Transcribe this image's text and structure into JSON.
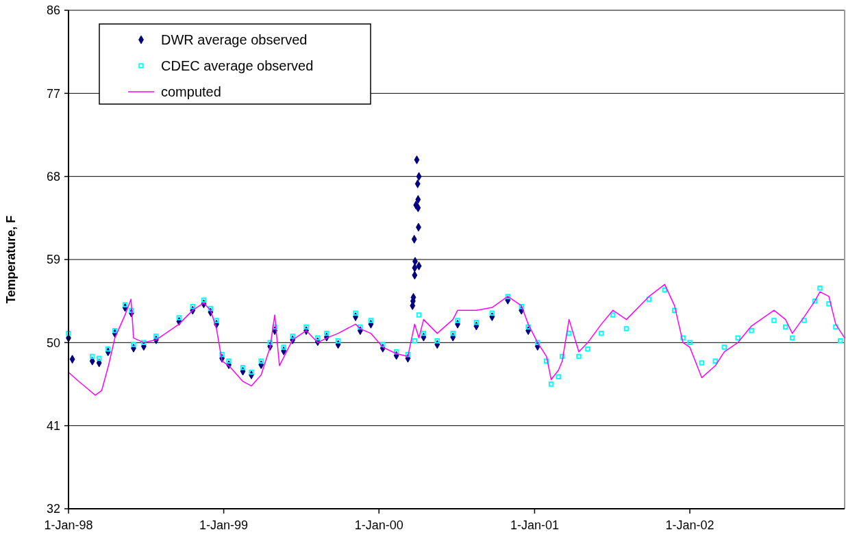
{
  "chart_data": {
    "type": "line",
    "ylabel": "Temperature, F",
    "xlim": [
      "1998-01-01",
      "2002-12-31"
    ],
    "xticks": [
      {
        "value": "1998-01-01",
        "label": "1-Jan-98"
      },
      {
        "value": "1999-01-01",
        "label": "1-Jan-99"
      },
      {
        "value": "2000-01-01",
        "label": "1-Jan-00"
      },
      {
        "value": "2001-01-01",
        "label": "1-Jan-01"
      },
      {
        "value": "2002-01-01",
        "label": "1-Jan-02"
      }
    ],
    "ylim": [
      32,
      86
    ],
    "yticks": [
      32,
      41,
      50,
      59,
      68,
      77,
      86
    ],
    "grid": "y",
    "legend": "top left",
    "series": [
      {
        "name": "DWR average observed",
        "type": "scatter",
        "marker": "diamond",
        "color": "#000080",
        "x": [
          "1998-01-01",
          "1998-01-10",
          "1998-02-26",
          "1998-03-14",
          "1998-04-04",
          "1998-04-20",
          "1998-05-14",
          "1998-05-29",
          "1998-06-03",
          "1998-06-27",
          "1998-07-26",
          "1998-09-18",
          "1998-10-20",
          "1998-11-15",
          "1998-12-01",
          "1998-12-15",
          "1998-12-28",
          "1999-01-13",
          "1999-02-15",
          "1999-03-07",
          "1999-03-30",
          "1999-04-20",
          "1999-05-01",
          "1999-05-22",
          "1999-06-12",
          "1999-07-14",
          "1999-08-10",
          "1999-08-31",
          "1999-09-27",
          "1999-11-07",
          "1999-11-18",
          "1999-12-13",
          "2000-01-10",
          "2000-02-11",
          "2000-03-09",
          "2000-03-20",
          "2000-03-21",
          "2000-03-22",
          "2000-03-25",
          "2000-03-25",
          "2000-03-26",
          "2000-03-24",
          "2000-03-30",
          "2000-03-28",
          "2000-04-01",
          "2000-04-02",
          "2000-04-02",
          "2000-04-03",
          "2000-04-04",
          "2000-04-04",
          "2000-04-15",
          "2000-05-17",
          "2000-06-23",
          "2000-07-04",
          "2000-08-17",
          "2000-09-23",
          "2000-10-30",
          "2000-12-01",
          "2000-12-17",
          "2001-01-08"
        ],
        "values": [
          50.5,
          48.2,
          48.0,
          47.8,
          49.0,
          51.0,
          53.8,
          53.2,
          49.4,
          49.6,
          50.3,
          52.3,
          53.5,
          54.2,
          53.3,
          52.0,
          48.3,
          47.6,
          46.9,
          46.5,
          47.6,
          49.6,
          51.3,
          49.1,
          50.3,
          51.3,
          50.1,
          50.6,
          49.8,
          52.8,
          51.3,
          52.0,
          49.4,
          48.6,
          48.3,
          54.0,
          54.5,
          54.9,
          57.3,
          58.1,
          58.8,
          61.2,
          69.8,
          64.9,
          67.2,
          65.5,
          64.6,
          62.5,
          68.0,
          58.3,
          50.6,
          49.8,
          50.6,
          52.0,
          51.8,
          52.8,
          54.6,
          53.5,
          51.3,
          49.6
        ]
      },
      {
        "name": "CDEC average observed",
        "type": "scatter",
        "marker": "square",
        "color": "#00ffff",
        "x": [
          "1998-01-01",
          "1998-02-26",
          "1998-03-14",
          "1998-04-04",
          "1998-04-20",
          "1998-05-14",
          "1998-05-29",
          "1998-06-03",
          "1998-06-27",
          "1998-07-26",
          "1998-09-18",
          "1998-10-20",
          "1998-11-15",
          "1998-12-01",
          "1998-12-15",
          "1998-12-28",
          "1999-01-13",
          "1999-02-15",
          "1999-03-07",
          "1999-03-30",
          "1999-04-20",
          "1999-05-01",
          "1999-05-22",
          "1999-06-12",
          "1999-07-14",
          "1999-08-10",
          "1999-08-31",
          "1999-09-27",
          "1999-11-07",
          "1999-11-18",
          "1999-12-13",
          "2000-01-10",
          "2000-02-11",
          "2000-03-09",
          "2000-03-25",
          "2000-04-04",
          "2000-04-15",
          "2000-05-17",
          "2000-06-23",
          "2000-07-04",
          "2000-08-17",
          "2000-09-23",
          "2000-10-30",
          "2000-12-01",
          "2000-12-17",
          "2001-01-08",
          "2001-01-29",
          "2001-02-09",
          "2001-02-26",
          "2001-03-07",
          "2001-03-23",
          "2001-04-15",
          "2001-05-06",
          "2001-06-07",
          "2001-07-04",
          "2001-08-05",
          "2001-09-27",
          "2001-11-03",
          "2001-11-26",
          "2001-12-16",
          "2002-01-01",
          "2002-01-29",
          "2002-03-02",
          "2002-03-23",
          "2002-04-24",
          "2002-05-26",
          "2002-07-18",
          "2002-08-14",
          "2002-08-30",
          "2002-09-27",
          "2002-10-22",
          "2002-11-03",
          "2002-11-24",
          "2002-12-10",
          "2002-12-21"
        ],
        "values": [
          51.0,
          48.5,
          48.3,
          49.3,
          51.3,
          54.1,
          53.5,
          49.8,
          50.0,
          50.7,
          52.7,
          53.9,
          54.6,
          53.7,
          52.4,
          48.7,
          48.0,
          47.3,
          46.8,
          48.0,
          50.0,
          51.7,
          49.5,
          50.7,
          51.7,
          50.5,
          51.0,
          50.2,
          53.2,
          51.7,
          52.4,
          49.8,
          49.0,
          48.7,
          50.2,
          53.0,
          51.0,
          50.2,
          51.0,
          52.4,
          52.2,
          53.2,
          55.0,
          53.9,
          51.7,
          50.0,
          48.0,
          45.5,
          46.3,
          48.5,
          51.0,
          48.5,
          49.3,
          51.0,
          53.0,
          51.5,
          54.7,
          55.7,
          53.5,
          50.5,
          50.0,
          47.8,
          48.0,
          49.5,
          50.5,
          51.3,
          52.4,
          51.7,
          50.5,
          52.4,
          54.5,
          55.9,
          54.2,
          51.7,
          50.2
        ]
      },
      {
        "name": "computed",
        "color": "#ff00ff",
        "x": [
          "1998-01-01",
          "1998-01-20",
          "1998-02-15",
          "1998-03-05",
          "1998-03-20",
          "1998-04-05",
          "1998-04-20",
          "1998-05-14",
          "1998-05-28",
          "1998-06-03",
          "1998-06-27",
          "1998-07-26",
          "1998-09-18",
          "1998-10-20",
          "1998-11-15",
          "1998-12-01",
          "1998-12-15",
          "1998-12-28",
          "1999-01-13",
          "1999-02-15",
          "1999-03-07",
          "1999-03-30",
          "1999-04-20",
          "1999-05-01",
          "1999-05-12",
          "1999-06-12",
          "1999-07-14",
          "1999-08-10",
          "1999-08-31",
          "1999-09-27",
          "1999-11-07",
          "1999-11-18",
          "1999-12-13",
          "2000-01-10",
          "2000-02-11",
          "2000-03-09",
          "2000-03-25",
          "2000-04-04",
          "2000-04-15",
          "2000-05-17",
          "2000-06-23",
          "2000-07-04",
          "2000-08-17",
          "2000-09-23",
          "2000-10-30",
          "2000-12-01",
          "2000-12-17",
          "2001-01-08",
          "2001-01-29",
          "2001-02-09",
          "2001-02-26",
          "2001-03-07",
          "2001-03-23",
          "2001-04-15",
          "2001-05-06",
          "2001-06-07",
          "2001-07-04",
          "2001-08-05",
          "2001-09-27",
          "2001-11-03",
          "2001-11-26",
          "2001-12-16",
          "2002-01-01",
          "2002-01-29",
          "2002-03-02",
          "2002-03-23",
          "2002-04-24",
          "2002-05-26",
          "2002-07-18",
          "2002-08-14",
          "2002-08-30",
          "2002-09-27",
          "2002-10-22",
          "2002-11-03",
          "2002-11-24",
          "2002-12-10",
          "2002-12-31"
        ],
        "values": [
          46.8,
          46.0,
          45.0,
          44.3,
          44.8,
          47.5,
          50.5,
          53.0,
          54.7,
          50.5,
          50.0,
          50.3,
          52.0,
          53.5,
          54.3,
          53.5,
          51.5,
          48.0,
          47.5,
          45.8,
          45.3,
          46.5,
          49.5,
          53.0,
          47.5,
          50.3,
          51.3,
          50.0,
          50.5,
          51.0,
          52.0,
          51.5,
          51.0,
          49.5,
          48.8,
          48.5,
          52.0,
          50.5,
          52.5,
          51.0,
          52.5,
          53.5,
          53.5,
          53.8,
          55.0,
          54.0,
          52.0,
          50.0,
          48.5,
          46.0,
          47.0,
          48.0,
          52.5,
          49.0,
          50.0,
          52.0,
          53.5,
          52.5,
          55.0,
          56.3,
          54.0,
          50.0,
          49.5,
          46.2,
          47.5,
          49.0,
          50.0,
          51.8,
          53.5,
          52.5,
          51.0,
          52.8,
          54.5,
          55.5,
          55.0,
          52.0,
          50.5
        ]
      }
    ]
  }
}
